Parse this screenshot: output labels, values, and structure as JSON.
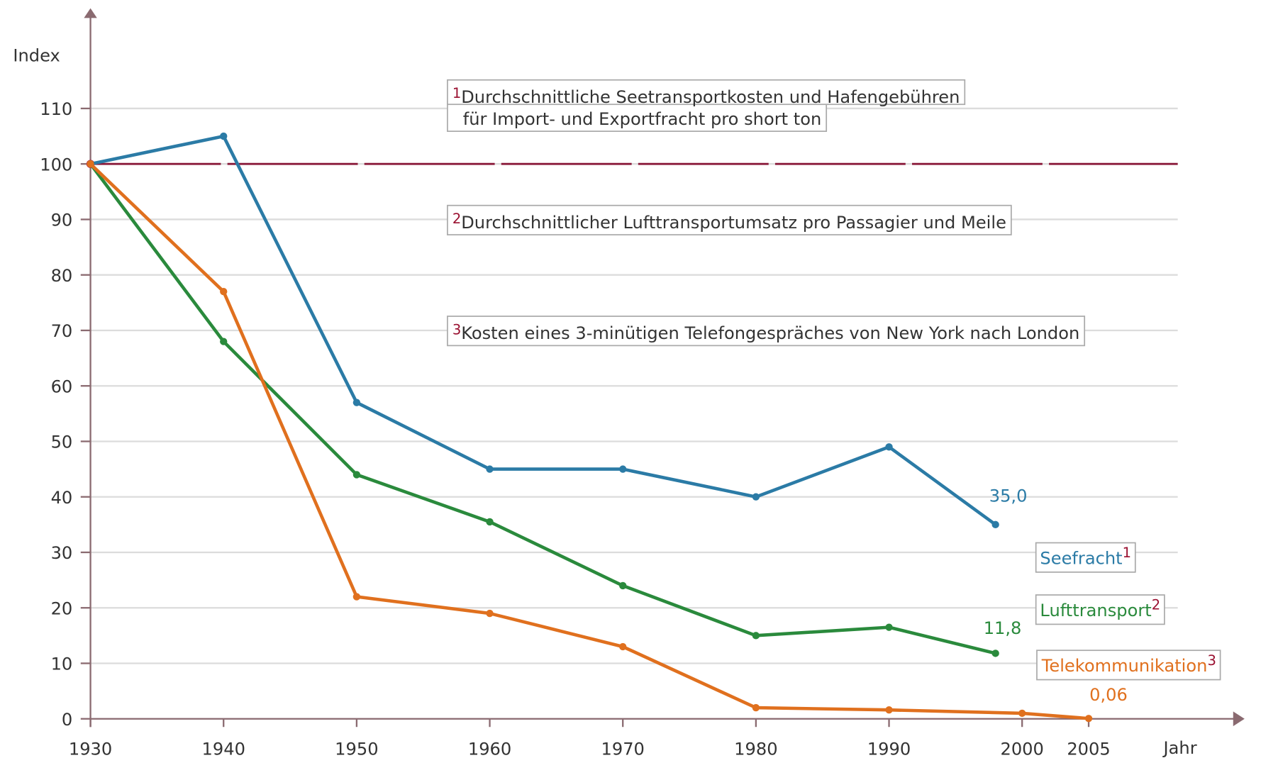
{
  "chart_data": {
    "type": "line",
    "x_label": "Jahr",
    "y_label": "Index",
    "xlim": [
      1930,
      2012
    ],
    "xticks": [
      1930,
      1940,
      1950,
      1960,
      1970,
      1980,
      1990,
      2000,
      2005
    ],
    "ylim": [
      0,
      110
    ],
    "yticks": [
      0,
      10,
      20,
      30,
      40,
      50,
      60,
      70,
      80,
      90,
      100,
      110
    ],
    "grid": true,
    "reference_line": {
      "value": 100,
      "color": "#8a1a3a"
    },
    "series": [
      {
        "name": "Seefracht",
        "marker": "1",
        "color": "#2b7ba6",
        "x": [
          1930,
          1940,
          1950,
          1960,
          1970,
          1980,
          1990,
          1998
        ],
        "values": [
          100,
          105,
          57,
          45,
          45,
          40,
          49,
          35
        ],
        "value_labels": [
          null,
          null,
          null,
          null,
          null,
          null,
          null,
          "35,0"
        ]
      },
      {
        "name": "Lufttransport",
        "marker": "2",
        "color": "#2a8a3c",
        "x": [
          1930,
          1940,
          1950,
          1960,
          1970,
          1980,
          1990,
          1998
        ],
        "values": [
          100,
          68,
          44,
          35.5,
          24,
          15,
          16.5,
          11.8
        ],
        "value_labels": [
          null,
          null,
          null,
          null,
          null,
          null,
          null,
          "11,8"
        ]
      },
      {
        "name": "Telekommunikation",
        "marker": "3",
        "color": "#e0701e",
        "x": [
          1930,
          1940,
          1950,
          1960,
          1970,
          1980,
          1990,
          2000,
          2005
        ],
        "values": [
          100,
          77,
          22,
          19,
          13,
          2,
          1.6,
          1,
          0.06
        ],
        "value_labels": [
          null,
          null,
          null,
          null,
          null,
          null,
          null,
          null,
          "0,06"
        ]
      }
    ],
    "annotations": [
      {
        "marker": "1",
        "lines": [
          "Durchschnittliche Seetransportkosten und Hafengebühren",
          "für Import- und Exportfracht pro short ton"
        ]
      },
      {
        "marker": "2",
        "lines": [
          "Durchschnittlicher Lufttransportumsatz pro Passagier und Meile"
        ]
      },
      {
        "marker": "3",
        "lines": [
          "Kosten eines 3-minütigen Telefongespräches von New York nach London"
        ]
      }
    ]
  }
}
